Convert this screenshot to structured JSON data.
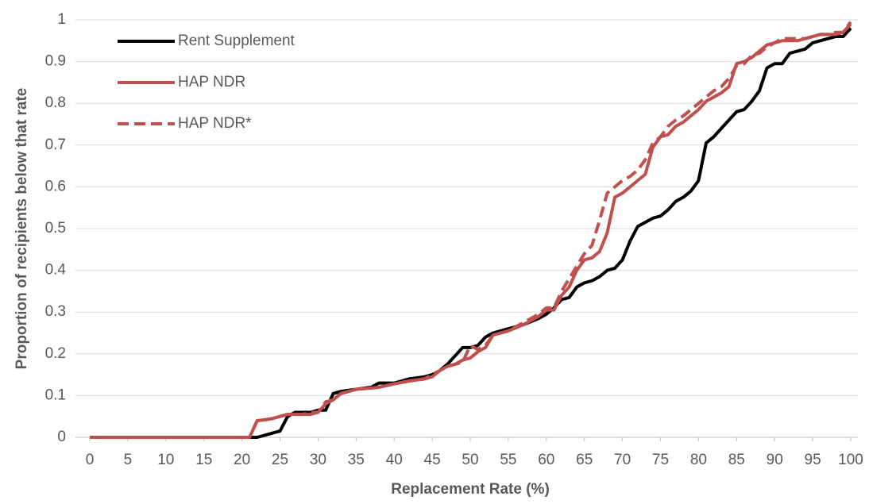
{
  "chart_data": {
    "type": "line",
    "x_label": "Replacement Rate (%)",
    "y_label": "Proportion of recipients below that rate",
    "x": [
      0,
      20,
      21,
      22,
      23,
      24,
      25,
      26,
      27,
      28,
      29,
      30,
      31,
      32,
      33,
      35,
      37,
      38,
      40,
      42,
      44,
      45,
      46,
      47,
      48,
      49,
      50,
      51,
      52,
      53,
      55,
      57,
      59,
      60,
      61,
      62,
      63,
      64,
      65,
      66,
      67,
      68,
      69,
      70,
      71,
      72,
      73,
      74,
      75,
      76,
      77,
      78,
      79,
      80,
      81,
      82,
      83,
      84,
      85,
      86,
      87,
      88,
      89,
      90,
      91,
      92,
      93,
      94,
      95,
      96,
      97,
      98,
      99,
      100
    ],
    "series": [
      {
        "name": "Rent Supplement",
        "color": "#000000",
        "dash": false,
        "values": [
          0,
          0,
          0,
          0,
          0.005,
          0.01,
          0.015,
          0.05,
          0.06,
          0.06,
          0.06,
          0.065,
          0.065,
          0.105,
          0.11,
          0.115,
          0.12,
          0.13,
          0.13,
          0.14,
          0.145,
          0.15,
          0.16,
          0.175,
          0.195,
          0.215,
          0.215,
          0.22,
          0.24,
          0.25,
          0.26,
          0.27,
          0.285,
          0.295,
          0.31,
          0.33,
          0.335,
          0.36,
          0.37,
          0.375,
          0.385,
          0.4,
          0.405,
          0.425,
          0.47,
          0.505,
          0.515,
          0.525,
          0.53,
          0.545,
          0.565,
          0.575,
          0.59,
          0.615,
          0.705,
          0.72,
          0.74,
          0.76,
          0.78,
          0.785,
          0.805,
          0.83,
          0.885,
          0.895,
          0.895,
          0.92,
          0.925,
          0.93,
          0.945,
          0.95,
          0.955,
          0.96,
          0.96,
          0.98
        ]
      },
      {
        "name": "HAP NDR",
        "color": "#c0504d",
        "dash": false,
        "values": [
          0,
          0,
          0,
          0.04,
          0.042,
          0.045,
          0.05,
          0.055,
          0.055,
          0.055,
          0.055,
          0.06,
          0.08,
          0.09,
          0.105,
          0.115,
          0.118,
          0.12,
          0.128,
          0.135,
          0.14,
          0.145,
          0.16,
          0.17,
          0.175,
          0.185,
          0.19,
          0.205,
          0.215,
          0.245,
          0.255,
          0.27,
          0.29,
          0.305,
          0.305,
          0.34,
          0.36,
          0.4,
          0.425,
          0.43,
          0.445,
          0.49,
          0.575,
          0.585,
          0.6,
          0.615,
          0.63,
          0.695,
          0.72,
          0.725,
          0.745,
          0.755,
          0.77,
          0.785,
          0.805,
          0.815,
          0.825,
          0.84,
          0.895,
          0.9,
          0.91,
          0.925,
          0.94,
          0.945,
          0.95,
          0.95,
          0.95,
          0.955,
          0.96,
          0.965,
          0.965,
          0.965,
          0.97,
          0.99
        ]
      },
      {
        "name": "HAP NDR*",
        "color": "#c0504d",
        "dash": true,
        "values": [
          0,
          0,
          0,
          0.04,
          0.042,
          0.045,
          0.05,
          0.055,
          0.055,
          0.055,
          0.06,
          0.06,
          0.085,
          0.09,
          0.105,
          0.115,
          0.118,
          0.12,
          0.128,
          0.135,
          0.14,
          0.15,
          0.16,
          0.17,
          0.175,
          0.18,
          0.22,
          0.21,
          0.22,
          0.245,
          0.255,
          0.275,
          0.295,
          0.31,
          0.31,
          0.35,
          0.38,
          0.41,
          0.44,
          0.46,
          0.52,
          0.585,
          0.6,
          0.615,
          0.625,
          0.64,
          0.665,
          0.705,
          0.72,
          0.745,
          0.76,
          0.77,
          0.785,
          0.8,
          0.815,
          0.83,
          0.84,
          0.86,
          0.89,
          0.895,
          0.915,
          0.92,
          0.935,
          0.945,
          0.955,
          0.955,
          0.955,
          0.955,
          0.96,
          0.965,
          0.965,
          0.97,
          0.97,
          0.995
        ]
      }
    ],
    "xlim": [
      0,
      100
    ],
    "xticks": [
      0,
      5,
      10,
      15,
      20,
      25,
      30,
      35,
      40,
      45,
      50,
      55,
      60,
      65,
      70,
      75,
      80,
      85,
      90,
      95,
      100
    ],
    "ylim": [
      0,
      1
    ],
    "yticks": [
      0,
      0.1,
      0.2,
      0.3,
      0.4,
      0.5,
      0.6,
      0.7,
      0.8,
      0.9,
      1
    ],
    "grid": true,
    "legend": "upper left"
  }
}
